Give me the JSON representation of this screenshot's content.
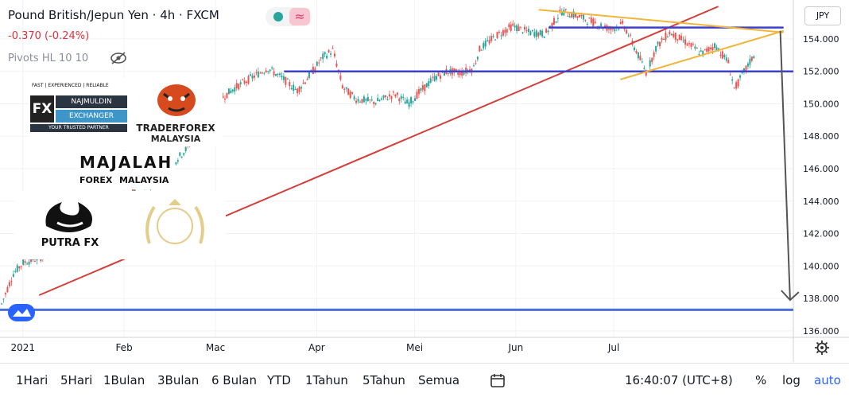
{
  "header": {
    "title": "Pound British/Jepun Yen · 4h · FXCM",
    "change": "-0.370 (-0.24%)",
    "pivots": "Pivots HL 10 10",
    "currency": "JPY",
    "wave_glyph": "≈"
  },
  "logos": [
    {
      "name": "najmuldin",
      "line1": "FAST | EXPERIENCED | RELIABLE",
      "line2": "FX",
      "line3": "NAJMULDIN",
      "line4": "EXCHANGER",
      "line5": "YOUR TRUSTED PARTNER"
    },
    {
      "name": "traderforex",
      "line1": "TRADERFOREX",
      "line2": "MALAYSIA"
    },
    {
      "name": "majalah",
      "line1": "MAJALAH",
      "line2": "FOREX",
      "line3": "MALAYSIA"
    },
    {
      "name": "putra",
      "line1": "PUTRA FX"
    }
  ],
  "toolbar": {
    "ranges": [
      "1Hari",
      "5Hari",
      "1Bulan",
      "3Bulan",
      "6 Bulan",
      "YTD",
      "1Tahun",
      "5Tahun",
      "Semua"
    ],
    "time": "16:40:07 (UTC+8)",
    "percent": "%",
    "log": "log",
    "auto": "auto"
  },
  "colors": {
    "blue_level": "#3b3fd0",
    "support": "#4a6fdc",
    "trend": "#d43f3a",
    "triangle": "#f0b63a",
    "up": "#26a69a",
    "down": "#ef5350",
    "projection": "#555555"
  },
  "chart_data": {
    "type": "candlestick",
    "y_ticks": [
      136,
      138,
      140,
      142,
      144,
      146,
      148,
      150,
      152,
      154
    ],
    "y_tick_labels": [
      "136.000",
      "138.000",
      "140.000",
      "142.000",
      "144.000",
      "146.000",
      "148.000",
      "150.000",
      "152.000",
      "154.000"
    ],
    "ylim": [
      135.6,
      156.4
    ],
    "x_ticks": [
      "2021",
      "Feb",
      "Mac",
      "Apr",
      "Mei",
      "Jun",
      "Jul"
    ],
    "x_tick_days": [
      0,
      31,
      59,
      90,
      120,
      151,
      181
    ],
    "xlim": [
      -7,
      236
    ],
    "price_path": [
      [
        -7,
        137.4
      ],
      [
        -3,
        139.5
      ],
      [
        0,
        140.2
      ],
      [
        5,
        140.5
      ],
      [
        10,
        140.9
      ],
      [
        15,
        141.2
      ],
      [
        20,
        141.9
      ],
      [
        25,
        142.4
      ],
      [
        30,
        143.8
      ],
      [
        35,
        144.8
      ],
      [
        40,
        145.2
      ],
      [
        45,
        146.1
      ],
      [
        50,
        147.2
      ],
      [
        55,
        148.6
      ],
      [
        60,
        150.2
      ],
      [
        65,
        151.0
      ],
      [
        70,
        151.6
      ],
      [
        75,
        152.2
      ],
      [
        80,
        151.5
      ],
      [
        84,
        150.8
      ],
      [
        88,
        151.8
      ],
      [
        92,
        152.9
      ],
      [
        95,
        153.3
      ],
      [
        98,
        151.0
      ],
      [
        102,
        150.3
      ],
      [
        108,
        150.1
      ],
      [
        114,
        150.6
      ],
      [
        118,
        150.0
      ],
      [
        122,
        150.8
      ],
      [
        126,
        151.6
      ],
      [
        130,
        152.0
      ],
      [
        134,
        151.9
      ],
      [
        138,
        152.2
      ],
      [
        140,
        153.4
      ],
      [
        145,
        154.2
      ],
      [
        150,
        154.8
      ],
      [
        155,
        154.4
      ],
      [
        160,
        154.3
      ],
      [
        165,
        155.7
      ],
      [
        170,
        155.4
      ],
      [
        175,
        155.0
      ],
      [
        180,
        154.6
      ],
      [
        184,
        154.9
      ],
      [
        188,
        153.2
      ],
      [
        191,
        151.9
      ],
      [
        194,
        153.5
      ],
      [
        198,
        154.4
      ],
      [
        203,
        153.8
      ],
      [
        208,
        153.1
      ],
      [
        212,
        153.6
      ],
      [
        216,
        152.6
      ],
      [
        218,
        150.9
      ],
      [
        221,
        152.0
      ],
      [
        224,
        153.0
      ]
    ],
    "levels": [
      {
        "name": "resistance-top",
        "from": 161,
        "to": 233,
        "y": 154.7
      },
      {
        "name": "mid-level",
        "from": 80,
        "to": 236,
        "y": 152.0
      },
      {
        "name": "bottom-support",
        "from": -7,
        "to": 236,
        "y": 137.3
      }
    ],
    "trendline": {
      "from": [
        5,
        138.2
      ],
      "to": [
        213,
        156.0
      ]
    },
    "triangle": [
      {
        "from": [
          158,
          155.8
        ],
        "to": [
          233,
          154.4
        ]
      },
      {
        "from": [
          183,
          151.5
        ],
        "to": [
          233,
          154.5
        ]
      }
    ],
    "projection": {
      "from": [
        232,
        154.5
      ],
      "to": [
        235,
        137.9
      ]
    }
  }
}
